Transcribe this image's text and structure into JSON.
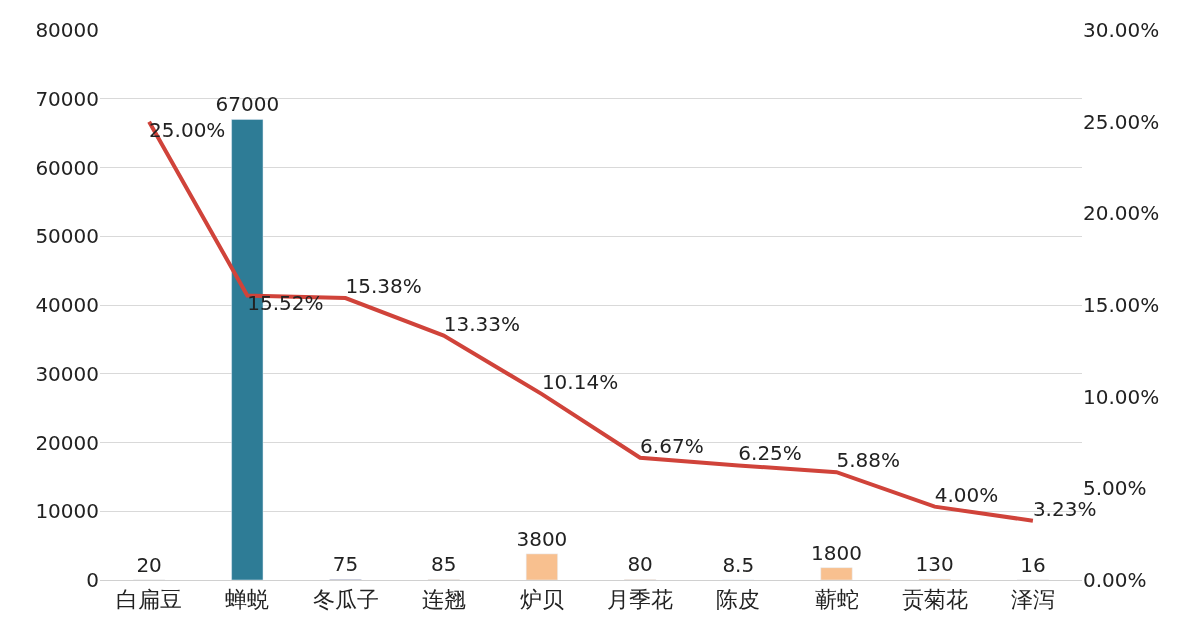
{
  "chart_data": {
    "type": "bar",
    "categories": [
      "白扁豆",
      "蝉蜕",
      "冬瓜子",
      "连翘",
      "炉贝",
      "月季花",
      "陈皮",
      "蕲蛇",
      "贡菊花",
      "泽泻"
    ],
    "series": [
      {
        "colors": [
          "#f8c08f",
          "#2e7c96",
          "#4a3f6b",
          "#f8c08f",
          "#f8c08f",
          "#f8c08f",
          "#f8c08f",
          "#f8c08f",
          "#f8c08f",
          "#f8c08f"
        ],
        "values": [
          20,
          67000,
          75,
          85,
          3800,
          80,
          8.5,
          1800,
          130,
          16
        ]
      },
      {
        "type": "line",
        "axis": "y2",
        "color": "#d0433a",
        "values": [
          25.0,
          15.52,
          15.38,
          13.33,
          10.14,
          6.67,
          6.25,
          5.88,
          4.0,
          3.23
        ],
        "value_labels": [
          "25.00%",
          "15.52%",
          "15.38%",
          "13.33%",
          "10.14%",
          "6.67%",
          "6.25%",
          "5.88%",
          "4.00%",
          "3.23%"
        ]
      }
    ],
    "data_labels": true,
    "ylim": [
      0,
      80000
    ],
    "yticks": [
      0,
      10000,
      20000,
      30000,
      40000,
      50000,
      60000,
      70000,
      80000
    ],
    "y2lim": [
      0,
      30
    ],
    "y2ticks": [
      {
        "value": 0,
        "label": "0.00%"
      },
      {
        "value": 5,
        "label": "5.00%"
      },
      {
        "value": 10,
        "label": "10.00%"
      },
      {
        "value": 15,
        "label": "15.00%"
      },
      {
        "value": 20,
        "label": "20.00%"
      },
      {
        "value": 25,
        "label": "25.00%"
      },
      {
        "value": 30,
        "label": "30.00%"
      }
    ],
    "grid": "y",
    "legend": false,
    "marker": "none",
    "line_style": "solid"
  }
}
